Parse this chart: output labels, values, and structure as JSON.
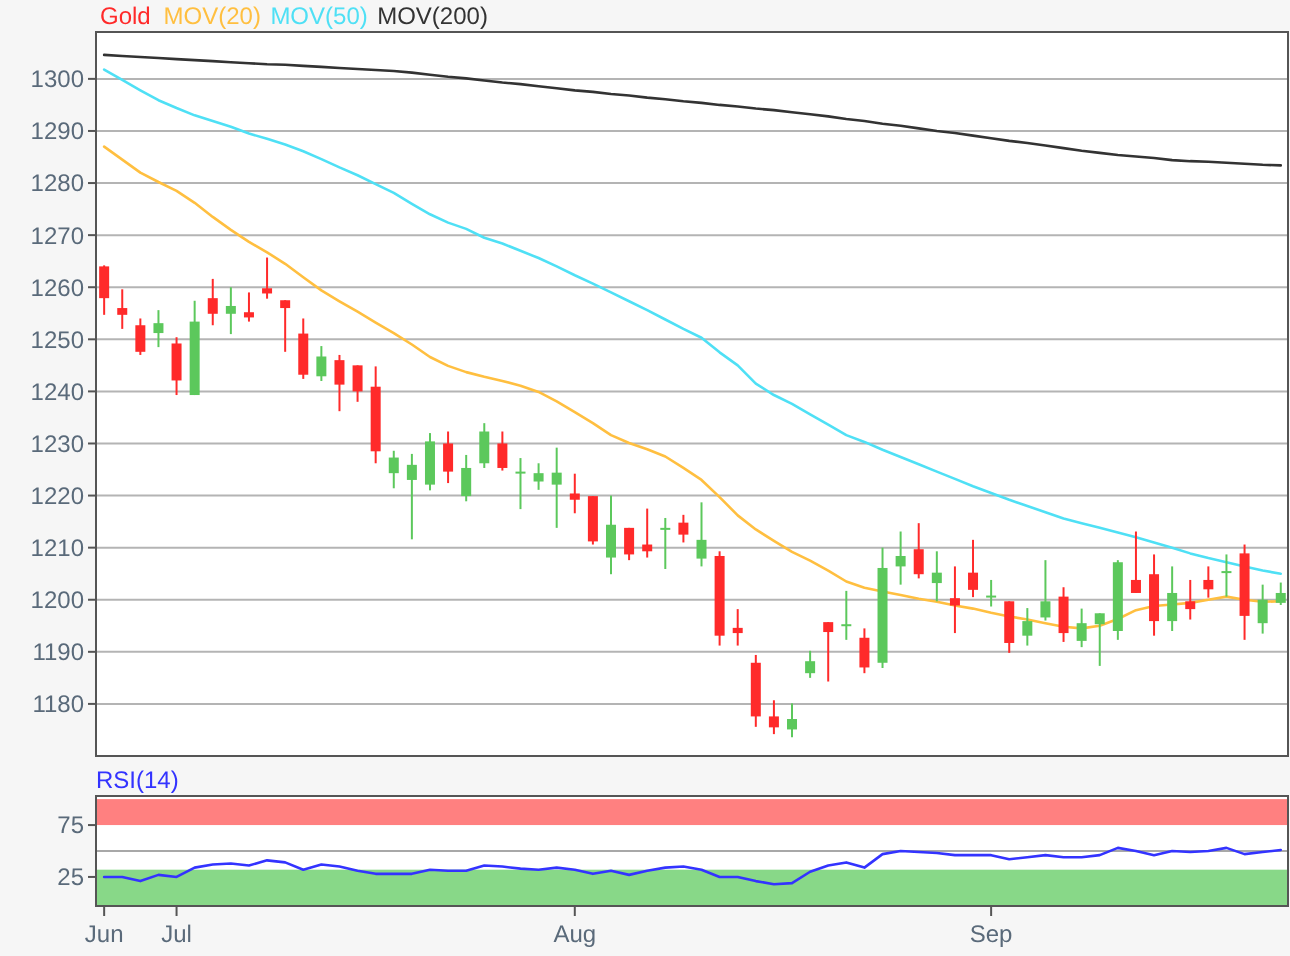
{
  "chart_data": [
    {
      "type": "candlestick",
      "ylim": [
        1170,
        1309
      ],
      "yticks": [
        1180,
        1190,
        1200,
        1210,
        1220,
        1230,
        1240,
        1250,
        1260,
        1270,
        1280,
        1290,
        1300
      ],
      "grid": "y",
      "legend": "top left",
      "tick_labels": "y",
      "categories": [
        null,
        null,
        null,
        null,
        null,
        null,
        null,
        null,
        null,
        null,
        null,
        null,
        null,
        null,
        null,
        null,
        null,
        null,
        null,
        null,
        null,
        null,
        null,
        null,
        null,
        null,
        null,
        null,
        null,
        null,
        null,
        null,
        null,
        null,
        null,
        null,
        null,
        null,
        null,
        null,
        null,
        null,
        null,
        null,
        null,
        null,
        null,
        null,
        null,
        null,
        null,
        null,
        null,
        null,
        null,
        null,
        null,
        null,
        null,
        null,
        null,
        null,
        null,
        null,
        null,
        null
      ],
      "series": [
        {
          "name": "Gold",
          "color": "#ff2a2a",
          "ohlc": [
            [
              1264,
              1264.2,
              1254.7,
              1257.9
            ],
            [
              1256,
              1259.6,
              1252,
              1254.7
            ],
            [
              1252.7,
              1254,
              1247,
              1247.6
            ],
            [
              1251.2,
              1255.6,
              1248.5,
              1253.1
            ],
            [
              1249.2,
              1250.4,
              1239.3,
              1242.1
            ],
            [
              1239.3,
              1257.4,
              1239.3,
              1253.4
            ],
            [
              1257.9,
              1261.6,
              1252.7,
              1254.9
            ],
            [
              1254.9,
              1260,
              1251,
              1256.4
            ],
            [
              1255.2,
              1259,
              1253.4,
              1254.2
            ],
            [
              1259.8,
              1265.7,
              1257.8,
              1258.8
            ],
            [
              1257.5,
              1257.5,
              1247.6,
              1256
            ],
            [
              1251.1,
              1254,
              1242.4,
              1243.2
            ],
            [
              1242.9,
              1248.7,
              1242,
              1246.7
            ],
            [
              1246,
              1247,
              1236.2,
              1241.3
            ],
            [
              1245,
              1245,
              1238,
              1240
            ],
            [
              1240.9,
              1244.8,
              1226.2,
              1228.5
            ],
            [
              1224.3,
              1228.6,
              1221.4,
              1227.3
            ],
            [
              1223,
              1228,
              1211.6,
              1225.9
            ],
            [
              1222.1,
              1232,
              1221,
              1230.4
            ],
            [
              1230,
              1232.3,
              1222.4,
              1224.6
            ],
            [
              1219.9,
              1227.8,
              1218.9,
              1225.3
            ],
            [
              1226.2,
              1233.9,
              1225.3,
              1232.3
            ],
            [
              1230,
              1232.3,
              1224.8,
              1225.3
            ],
            [
              1224.3,
              1227.2,
              1217.4,
              1224.6
            ],
            [
              1222.7,
              1226.2,
              1221.1,
              1224.3
            ],
            [
              1222.1,
              1229.2,
              1213.8,
              1224.4
            ],
            [
              1220.4,
              1224.2,
              1216.6,
              1219.2
            ],
            [
              1219.9,
              1219.9,
              1210.6,
              1211.2
            ],
            [
              1208.1,
              1220,
              1204.9,
              1214.4
            ],
            [
              1213.8,
              1213.8,
              1207.6,
              1208.7
            ],
            [
              1210.6,
              1217.5,
              1208.1,
              1209.3
            ],
            [
              1213.6,
              1215.7,
              1205.9,
              1213.8
            ],
            [
              1214.8,
              1216.3,
              1211,
              1212.5
            ],
            [
              1207.9,
              1218.7,
              1206.4,
              1211.5
            ],
            [
              1208.4,
              1209.3,
              1191.2,
              1193.1
            ],
            [
              1194.6,
              1198.2,
              1191.2,
              1193.6
            ],
            [
              1187.9,
              1189.4,
              1175.6,
              1177.6
            ],
            [
              1177.6,
              1180.7,
              1174.2,
              1175.5
            ],
            [
              1175.1,
              1180.1,
              1173.6,
              1177.1
            ],
            [
              1185.9,
              1190.2,
              1185,
              1188.2
            ],
            [
              1195.7,
              1195.7,
              1184.3,
              1193.8
            ],
            [
              1195,
              1201.7,
              1192.3,
              1195.3
            ],
            [
              1192.7,
              1194.5,
              1185.9,
              1187
            ],
            [
              1187.9,
              1210,
              1186.9,
              1206.1
            ],
            [
              1206.4,
              1213.1,
              1202.9,
              1208.4
            ],
            [
              1209.7,
              1214.7,
              1204.1,
              1204.9
            ],
            [
              1203.2,
              1209.3,
              1199.7,
              1205.2
            ],
            [
              1200.3,
              1206.4,
              1193.6,
              1198.9
            ],
            [
              1205.2,
              1211.5,
              1200.5,
              1201.9
            ],
            [
              1200.6,
              1203.8,
              1198.7,
              1200.8
            ],
            [
              1199.7,
              1199.7,
              1189.8,
              1191.7
            ],
            [
              1193.1,
              1198.4,
              1191.2,
              1195.9
            ],
            [
              1196.6,
              1207.6,
              1196,
              1199.7
            ],
            [
              1200.6,
              1202.4,
              1191.9,
              1193.6
            ],
            [
              1192.1,
              1198.3,
              1190.9,
              1195.5
            ],
            [
              1195.3,
              1197.4,
              1187.3,
              1197.4
            ],
            [
              1194,
              1207.6,
              1192.3,
              1207.2
            ],
            [
              1203.8,
              1213.1,
              1201.3,
              1201.3
            ],
            [
              1204.9,
              1208.7,
              1193.1,
              1195.9
            ],
            [
              1195.9,
              1206.4,
              1194,
              1201.3
            ],
            [
              1199.7,
              1203.8,
              1196.2,
              1198.2
            ],
            [
              1203.8,
              1206.4,
              1200.4,
              1202
            ],
            [
              1205.2,
              1208.7,
              1200.6,
              1205.5
            ],
            [
              1208.9,
              1210.6,
              1192.3,
              1196.9
            ],
            [
              1195.5,
              1202.9,
              1193.5,
              1200
            ],
            [
              1199.4,
              1203.3,
              1199,
              1201.3
            ]
          ],
          "colors": [
            "#ff2a2a",
            "#ff2a2a",
            "#ff2a2a",
            "#5cc85c",
            "#ff2a2a",
            "#5cc85c",
            "#ff2a2a",
            "#5cc85c",
            "#ff2a2a",
            "#ff2a2a",
            "#ff2a2a",
            "#ff2a2a",
            "#5cc85c",
            "#ff2a2a",
            "#ff2a2a",
            "#ff2a2a",
            "#5cc85c",
            "#5cc85c",
            "#5cc85c",
            "#ff2a2a",
            "#5cc85c",
            "#5cc85c",
            "#ff2a2a",
            "#5cc85c",
            "#5cc85c",
            "#5cc85c",
            "#ff2a2a",
            "#ff2a2a",
            "#5cc85c",
            "#ff2a2a",
            "#ff2a2a",
            "#5cc85c",
            "#ff2a2a",
            "#5cc85c",
            "#ff2a2a",
            "#ff2a2a",
            "#ff2a2a",
            "#ff2a2a",
            "#5cc85c",
            "#5cc85c",
            "#ff2a2a",
            "#5cc85c",
            "#ff2a2a",
            "#5cc85c",
            "#5cc85c",
            "#ff2a2a",
            "#5cc85c",
            "#ff2a2a",
            "#ff2a2a",
            "#5cc85c",
            "#ff2a2a",
            "#5cc85c",
            "#5cc85c",
            "#ff2a2a",
            "#5cc85c",
            "#5cc85c",
            "#5cc85c",
            "#ff2a2a",
            "#ff2a2a",
            "#5cc85c",
            "#ff2a2a",
            "#ff2a2a",
            "#5cc85c",
            "#ff2a2a",
            "#5cc85c",
            "#5cc85c"
          ]
        },
        {
          "name": "MOV(20)",
          "type": "line",
          "color": "#ffbf40",
          "values": [
            1287,
            1284.5,
            1282,
            1280.2,
            1278.5,
            1276.2,
            1273.5,
            1271,
            1268.7,
            1266.7,
            1264.5,
            1261.9,
            1259.4,
            1257.3,
            1255.3,
            1253.2,
            1251.2,
            1249,
            1246.6,
            1244.9,
            1243.7,
            1242.8,
            1242,
            1241.1,
            1239.9,
            1238.1,
            1236,
            1233.9,
            1231.6,
            1230.1,
            1228.9,
            1227.5,
            1225.3,
            1223,
            1219.7,
            1216.2,
            1213.5,
            1211.3,
            1209.2,
            1207.5,
            1205.6,
            1203.5,
            1202.3,
            1201.6,
            1200.9,
            1200.2,
            1199.6,
            1198.9,
            1198.3,
            1197.5,
            1196.8,
            1196.2,
            1195.5,
            1194.8,
            1194.5,
            1195,
            1196.3,
            1198,
            1198.8,
            1199.1,
            1199.4,
            1200,
            1200.6,
            1200,
            1199.6,
            1199.7
          ]
        },
        {
          "name": "MOV(50)",
          "type": "line",
          "color": "#4fe0f5",
          "values": [
            1301.8,
            1299.8,
            1297.8,
            1295.9,
            1294.4,
            1293,
            1291.9,
            1290.8,
            1289.5,
            1288.5,
            1287.4,
            1286.1,
            1284.6,
            1283,
            1281.5,
            1279.8,
            1278.1,
            1276,
            1274,
            1272.4,
            1271.2,
            1269.5,
            1268.4,
            1267,
            1265.6,
            1264,
            1262.3,
            1260.7,
            1259,
            1257.3,
            1255.6,
            1253.8,
            1252,
            1250.3,
            1247.5,
            1245,
            1241.5,
            1239.3,
            1237.6,
            1235.6,
            1233.6,
            1231.6,
            1230.3,
            1228.8,
            1227.4,
            1226,
            1224.6,
            1223.2,
            1221.8,
            1220.5,
            1219.2,
            1218,
            1216.8,
            1215.6,
            1214.7,
            1213.8,
            1212.9,
            1212,
            1211,
            1210,
            1208.9,
            1208,
            1207.2,
            1206.4,
            1205.6,
            1205
          ]
        },
        {
          "name": "MOV(200)",
          "type": "line",
          "color": "#333333",
          "values": [
            1304.6,
            1304.4,
            1304.2,
            1304,
            1303.8,
            1303.6,
            1303.4,
            1303.2,
            1303,
            1302.8,
            1302.7,
            1302.5,
            1302.3,
            1302.1,
            1301.9,
            1301.7,
            1301.5,
            1301.2,
            1300.8,
            1300.4,
            1300.1,
            1299.7,
            1299.3,
            1299,
            1298.6,
            1298.2,
            1297.8,
            1297.5,
            1297.1,
            1296.8,
            1296.4,
            1296.1,
            1295.7,
            1295.4,
            1295,
            1294.7,
            1294.3,
            1294,
            1293.6,
            1293.2,
            1292.8,
            1292.3,
            1291.9,
            1291.4,
            1291,
            1290.5,
            1290,
            1289.6,
            1289.1,
            1288.6,
            1288.1,
            1287.7,
            1287.2,
            1286.7,
            1286.2,
            1285.8,
            1285.4,
            1285.1,
            1284.8,
            1284.4,
            1284.2,
            1284.1,
            1283.9,
            1283.7,
            1283.5,
            1283.4
          ]
        }
      ]
    },
    {
      "type": "line",
      "title": "RSI(14)",
      "ylim": [
        -3,
        103
      ],
      "yticks": [
        25,
        75
      ],
      "categories": [
        "Jun",
        null,
        null,
        null,
        "Jul",
        null,
        null,
        null,
        null,
        null,
        null,
        null,
        null,
        null,
        null,
        null,
        null,
        null,
        null,
        null,
        null,
        null,
        null,
        null,
        null,
        null,
        "Aug",
        null,
        null,
        null,
        null,
        null,
        null,
        null,
        null,
        null,
        null,
        null,
        null,
        null,
        null,
        null,
        null,
        null,
        null,
        null,
        null,
        null,
        null,
        "Sep",
        null,
        null,
        null,
        null,
        null,
        null,
        null,
        null,
        null,
        null,
        null,
        null,
        null,
        null,
        null,
        null
      ],
      "bands": [
        {
          "axis": "y",
          "from": 75,
          "to": 100,
          "color": "#ff8080"
        },
        {
          "axis": "y",
          "from": -3,
          "to": 32,
          "color": "#88d888"
        }
      ],
      "ref_lines": [
        {
          "axis": "y",
          "value": 50,
          "color": "#a8a8a8"
        }
      ],
      "series": [
        {
          "color": "#3333ff",
          "values": [
            25,
            25,
            21,
            27,
            25,
            34,
            37,
            38,
            36,
            41,
            39,
            32,
            37,
            35,
            31,
            28,
            28,
            28,
            32,
            31,
            31,
            36,
            35,
            33,
            32,
            34,
            32,
            28,
            31,
            27,
            31,
            34,
            35,
            32,
            25,
            25,
            21,
            18,
            19,
            30,
            36,
            39,
            34,
            47,
            50,
            49,
            48,
            46,
            46,
            46,
            42,
            44,
            46,
            44,
            44,
            46,
            53,
            50,
            46,
            50,
            49,
            50,
            53,
            47,
            49,
            51
          ]
        }
      ]
    }
  ]
}
